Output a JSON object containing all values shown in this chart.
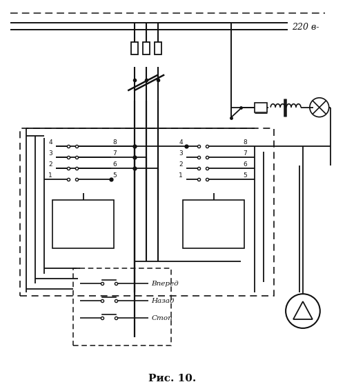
{
  "title": "Рис. 10.",
  "voltage_label": "220 в-",
  "bg_color": "#ffffff",
  "line_color": "#111111",
  "label_forward": "Вперед",
  "label_backward": "Назад",
  "label_stop": "Стоп",
  "figsize": [
    5.0,
    5.67
  ],
  "dpi": 100
}
